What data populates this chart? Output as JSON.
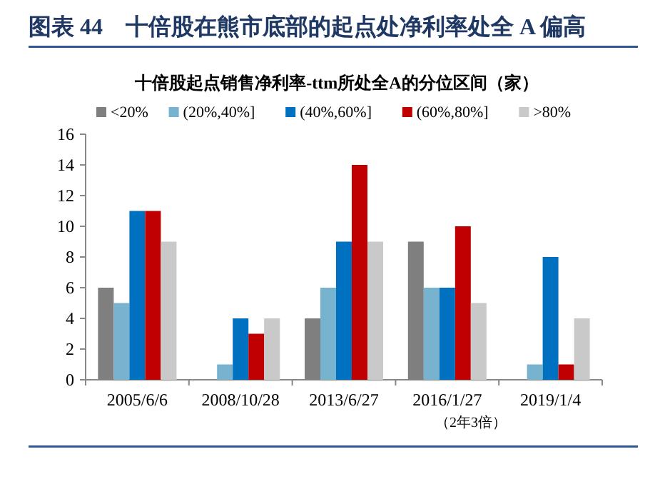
{
  "chart_data": {
    "type": "bar",
    "title": "图表 44　十倍股在熊市底部的起点处净利率处全 A 偏高",
    "subtitle": "十倍股起点销售净利率-ttm所处全A的分位区间（家）",
    "categories": [
      "2005/6/6",
      "2008/10/28",
      "2013/6/27",
      "2016/1/27",
      "2019/1/4"
    ],
    "series": [
      {
        "name": "<20%",
        "color": "#7f7f7f",
        "values": [
          6,
          0,
          4,
          9,
          0
        ]
      },
      {
        "name": "(20%,40%]",
        "color": "#77b3ce",
        "values": [
          5,
          1,
          6,
          6,
          1
        ]
      },
      {
        "name": "(40%,60%]",
        "color": "#0070c0",
        "values": [
          11,
          4,
          9,
          6,
          8
        ]
      },
      {
        "name": "(60%,80%]",
        "color": "#c00000",
        "values": [
          11,
          3,
          14,
          10,
          1
        ]
      },
      {
        "name": ">80%",
        "color": "#c9c9c9",
        "values": [
          9,
          4,
          9,
          5,
          4
        ]
      }
    ],
    "ylim": [
      0,
      16
    ],
    "yticks": [
      0,
      2,
      4,
      6,
      8,
      10,
      12,
      14,
      16
    ],
    "legend": "top",
    "annotations": [
      "（2年3倍）"
    ]
  }
}
